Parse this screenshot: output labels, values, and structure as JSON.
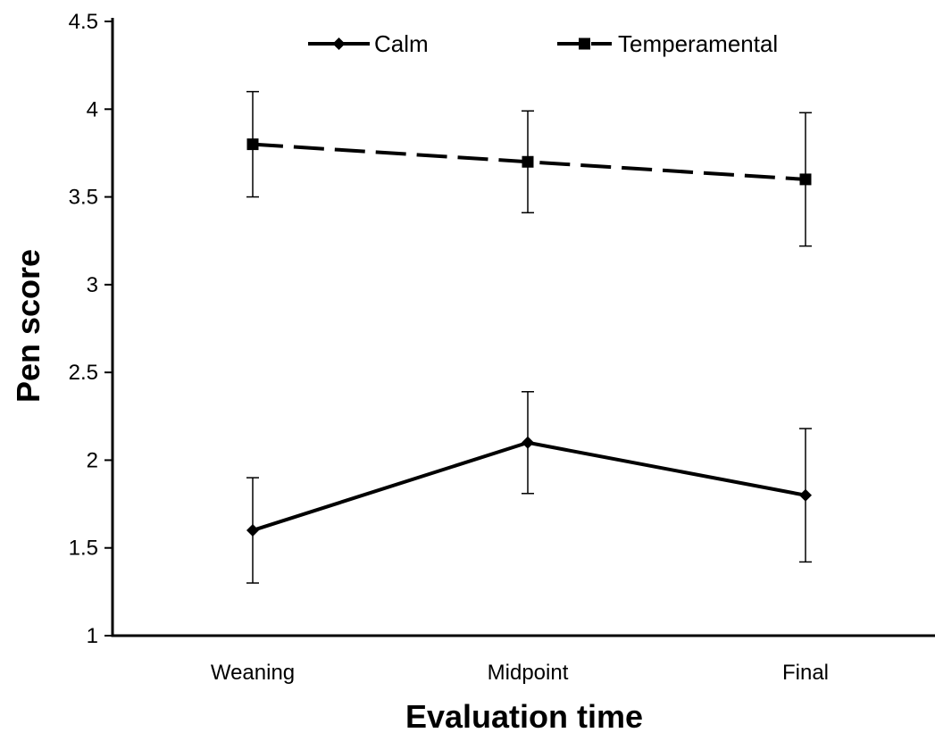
{
  "chart_data": {
    "type": "line",
    "title": "",
    "xlabel": "Evaluation time",
    "ylabel": "Pen score",
    "categories": [
      "Weaning",
      "Midpoint",
      "Final"
    ],
    "ylim": [
      1,
      4.5
    ],
    "yticks": [
      "1",
      "1.5",
      "2",
      "2.5",
      "3",
      "3.5",
      "4",
      "4.5"
    ],
    "grid": false,
    "legend_position": "top",
    "series": [
      {
        "name": "Calm",
        "values": [
          1.6,
          2.1,
          1.8
        ],
        "error_low": [
          1.3,
          1.81,
          1.42
        ],
        "error_high": [
          1.9,
          2.39,
          2.18
        ],
        "line_style": "solid",
        "marker": "diamond",
        "color": "#000000"
      },
      {
        "name": "Temperamental",
        "values": [
          3.8,
          3.7,
          3.6
        ],
        "error_low": [
          3.5,
          3.41,
          3.22
        ],
        "error_high": [
          4.1,
          3.99,
          3.98
        ],
        "line_style": "dashed",
        "marker": "square",
        "color": "#000000"
      }
    ]
  }
}
